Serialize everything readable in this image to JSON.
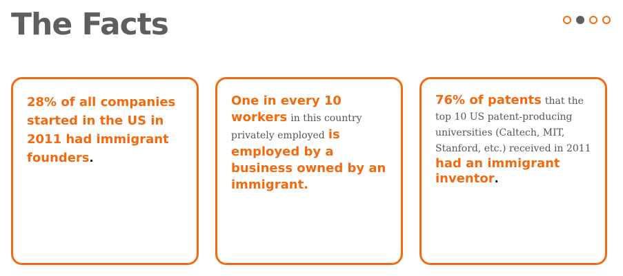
{
  "header": {
    "title": "The Facts",
    "pager_dots": 4,
    "active_dot": 2
  },
  "colors": {
    "accent": "#f26a0f",
    "title": "#5f5f5f",
    "body_text": "#555555"
  },
  "cards": [
    {
      "highlight": "28% of all companies started in the US in 2011 had immigrant founders",
      "end": "."
    },
    {
      "highlight_start": "One in every 10 workers",
      "plain": "in this country privately employed",
      "highlight_end": "is employed by a business owned by an immigrant."
    },
    {
      "highlight_start": "76% of patents",
      "plain": "that the top 10 US patent-producing universities (Caltech, MIT, Stanford, etc.) received in 2011",
      "highlight_end": "had an immigrant inventor",
      "end": "."
    }
  ]
}
